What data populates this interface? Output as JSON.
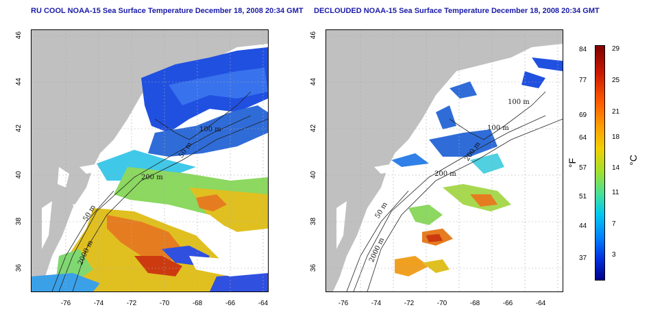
{
  "left_panel": {
    "title": "RU COOL NOAA-15 Sea Surface Temperature December 18, 2008 20:34 GMT",
    "depth_labels": [
      "100 m",
      "50 m",
      "200 m",
      "50 m",
      "2000 m"
    ]
  },
  "right_panel": {
    "title": "DECLOUDED NOAA-15 Sea Surface Temperature December 18, 2008 20:34 GMT",
    "depth_labels": [
      "100 m",
      "100 m",
      "200 m",
      "200 m",
      "50 m",
      "2000 m"
    ]
  },
  "axes": {
    "x_ticks": [
      "-76",
      "-74",
      "-72",
      "-70",
      "-68",
      "-66",
      "-64"
    ],
    "y_ticks": [
      "36",
      "38",
      "40",
      "42",
      "44",
      "46"
    ]
  },
  "colorbar": {
    "fahrenheit_ticks": [
      "84",
      "77",
      "69",
      "64",
      "57",
      "51",
      "44",
      "37"
    ],
    "celsius_ticks": [
      "29",
      "25",
      "21",
      "18",
      "14",
      "11",
      "7",
      "3"
    ],
    "left_unit": "°F",
    "right_unit": "°C"
  }
}
